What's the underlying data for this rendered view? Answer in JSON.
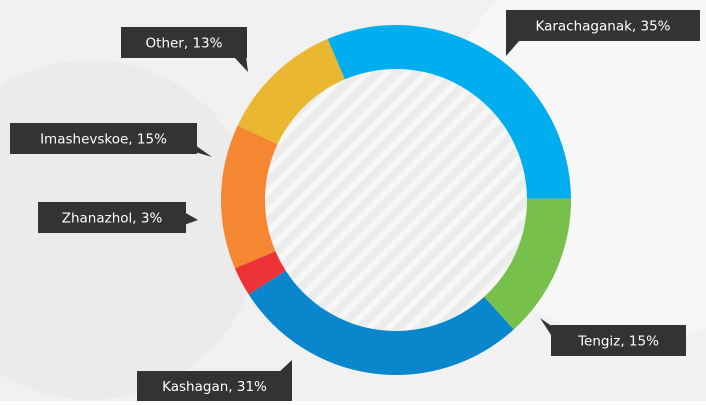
{
  "chart_data": {
    "type": "donut",
    "value_labels": [
      "Karachaganak, 35%",
      "Tengiz, 15%",
      "Kashagan, 31%",
      "Zhanazhol, 3%",
      "Imashevskoe, 15%",
      "Other, 13%"
    ],
    "values": [
      35,
      15,
      31,
      3,
      15,
      13
    ],
    "colors": [
      "#00aeef",
      "#78c04c",
      "#0a86cc",
      "#ee3338",
      "#f58733",
      "#eab830"
    ]
  }
}
